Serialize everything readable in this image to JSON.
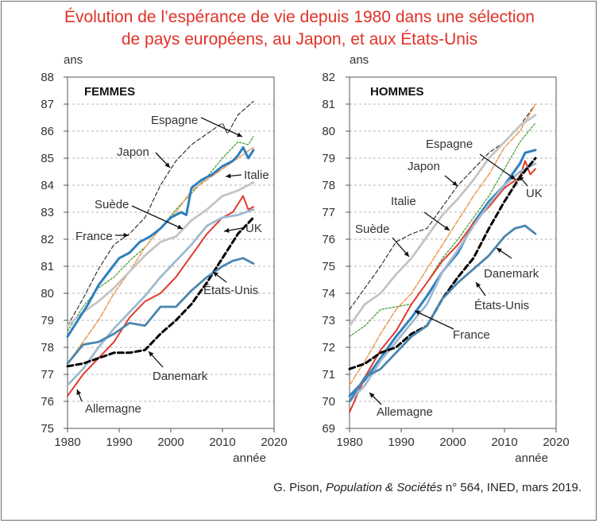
{
  "title_line1": "Évolution de l’espérance de vie depuis 1980 dans une sélection",
  "title_line2": "de pays européens, au Japon, et aux États-Unis",
  "source": {
    "author": "G. Pison, ",
    "journal": "Population & Sociétés",
    "rest": " n° 564, INED, mars 2019."
  },
  "colors": {
    "Japon": "#222222",
    "Espagne": "#3a9a2a",
    "Italie": "#e8954a",
    "Suède": "#c4c4c4",
    "France": "#2e7fbf",
    "UK": "#e23a2e",
    "Allemagne": "#9fbad0",
    "Danemark": "#000000",
    "États-Unis": "#4a86ae"
  },
  "chart_data": [
    {
      "type": "line",
      "panel_title": "FEMMES",
      "ylabel": "ans",
      "xlabel": "année",
      "xlim": [
        1980,
        2020
      ],
      "ylim": [
        75,
        88
      ],
      "xticks": [
        1980,
        1990,
        2000,
        2010,
        2020
      ],
      "yticks": [
        75,
        76,
        77,
        78,
        79,
        80,
        81,
        82,
        83,
        84,
        85,
        86,
        87,
        88
      ],
      "grid": "horizontal dashed",
      "series": [
        {
          "name": "Japon",
          "style": "dashed-thin",
          "x": [
            1980,
            1983,
            1986,
            1989,
            1992,
            1995,
            1998,
            2001,
            2004,
            2007,
            2010,
            2011,
            2013,
            2016
          ],
          "y": [
            78.8,
            79.8,
            80.9,
            81.8,
            82.2,
            82.8,
            84.0,
            84.9,
            85.5,
            85.9,
            86.3,
            85.9,
            86.6,
            87.1
          ]
        },
        {
          "name": "Espagne",
          "style": "dashed-dot",
          "x": [
            1980,
            1983,
            1986,
            1989,
            1992,
            1995,
            1998,
            2001,
            2004,
            2007,
            2010,
            2013,
            2015,
            2016
          ],
          "y": [
            78.6,
            79.5,
            80.2,
            80.6,
            81.2,
            81.7,
            82.4,
            83.1,
            83.7,
            84.3,
            85.0,
            85.6,
            85.5,
            85.8
          ]
        },
        {
          "name": "Italie",
          "style": "dash-long",
          "x": [
            1980,
            1983,
            1986,
            1989,
            1992,
            1995,
            1998,
            2001,
            2004,
            2007,
            2010,
            2013,
            2016
          ],
          "y": [
            77.4,
            78.2,
            79.0,
            80.0,
            80.8,
            81.7,
            82.4,
            83.0,
            83.8,
            84.2,
            84.6,
            85.0,
            85.4
          ]
        },
        {
          "name": "Suède",
          "style": "solid-gray",
          "x": [
            1980,
            1983,
            1986,
            1989,
            1992,
            1995,
            1998,
            2001,
            2004,
            2007,
            2010,
            2013,
            2016
          ],
          "y": [
            78.8,
            79.3,
            79.7,
            80.2,
            80.8,
            81.4,
            81.9,
            82.1,
            82.7,
            83.1,
            83.6,
            83.8,
            84.1
          ]
        },
        {
          "name": "France",
          "style": "solid-thick",
          "x": [
            1980,
            1982,
            1984,
            1986,
            1988,
            1990,
            1992,
            1994,
            1996,
            1998,
            2000,
            2002,
            2003,
            2004,
            2006,
            2008,
            2010,
            2012,
            2013,
            2014,
            2015,
            2016
          ],
          "y": [
            78.4,
            79.0,
            79.6,
            80.3,
            80.8,
            81.3,
            81.5,
            81.9,
            82.1,
            82.4,
            82.8,
            83.0,
            82.9,
            83.9,
            84.2,
            84.4,
            84.7,
            84.9,
            85.1,
            85.4,
            85.0,
            85.3
          ]
        },
        {
          "name": "UK",
          "style": "solid-red",
          "x": [
            1980,
            1983,
            1986,
            1989,
            1992,
            1995,
            1998,
            2001,
            2004,
            2007,
            2010,
            2012,
            2014,
            2015,
            2016
          ],
          "y": [
            76.2,
            77.0,
            77.6,
            78.2,
            79.1,
            79.7,
            80.0,
            80.6,
            81.4,
            82.2,
            82.8,
            83.0,
            83.6,
            83.1,
            83.2
          ]
        },
        {
          "name": "Allemagne",
          "style": "solid-lightblue",
          "x": [
            1980,
            1983,
            1986,
            1989,
            1992,
            1995,
            1998,
            2001,
            2004,
            2007,
            2010,
            2013,
            2016
          ],
          "y": [
            76.6,
            77.2,
            78.0,
            78.7,
            79.3,
            79.9,
            80.6,
            81.2,
            81.8,
            82.5,
            82.8,
            82.9,
            83.1
          ]
        },
        {
          "name": "Danemark",
          "style": "dashed-thick",
          "x": [
            1980,
            1983,
            1986,
            1989,
            1992,
            1995,
            1998,
            2001,
            2004,
            2007,
            2010,
            2013,
            2016
          ],
          "y": [
            77.3,
            77.4,
            77.6,
            77.8,
            77.8,
            77.9,
            78.5,
            79.0,
            79.6,
            80.4,
            81.3,
            82.2,
            82.8
          ]
        },
        {
          "name": "États-Unis",
          "style": "solid-black",
          "x": [
            1980,
            1983,
            1986,
            1989,
            1992,
            1995,
            1998,
            2001,
            2004,
            2007,
            2010,
            2012,
            2014,
            2016
          ],
          "y": [
            77.4,
            78.1,
            78.2,
            78.5,
            78.9,
            78.8,
            79.5,
            79.5,
            80.1,
            80.6,
            81.0,
            81.2,
            81.3,
            81.1
          ]
        }
      ],
      "annotations": [
        "Espagne",
        "Japon",
        "Italie",
        "Suède",
        "France",
        "UK",
        "États-Unis",
        "Danemark",
        "Allemagne"
      ]
    },
    {
      "type": "line",
      "panel_title": "HOMMES",
      "ylabel": "ans",
      "xlabel": "année",
      "xlim": [
        1980,
        2020
      ],
      "ylim": [
        69,
        82
      ],
      "xticks": [
        1980,
        1990,
        2000,
        2010,
        2020
      ],
      "yticks": [
        69,
        70,
        71,
        72,
        73,
        74,
        75,
        76,
        77,
        78,
        79,
        80,
        81,
        82
      ],
      "grid": "horizontal dashed",
      "series": [
        {
          "name": "Japon",
          "style": "dashed-thin",
          "x": [
            1980,
            1983,
            1986,
            1989,
            1992,
            1995,
            1998,
            2001,
            2004,
            2007,
            2010,
            2013,
            2016
          ],
          "y": [
            73.4,
            74.2,
            75.0,
            75.9,
            76.2,
            76.4,
            77.2,
            78.0,
            78.6,
            79.2,
            79.6,
            80.2,
            81.0
          ]
        },
        {
          "name": "Espagne",
          "style": "dashed-dot",
          "x": [
            1980,
            1983,
            1986,
            1989,
            1992,
            1995,
            1998,
            2001,
            2004,
            2007,
            2010,
            2013,
            2016
          ],
          "y": [
            72.4,
            72.8,
            73.4,
            73.5,
            73.6,
            74.4,
            75.3,
            76.0,
            76.8,
            77.6,
            78.6,
            79.6,
            80.3
          ]
        },
        {
          "name": "Italie",
          "style": "dash-long",
          "x": [
            1980,
            1983,
            1986,
            1989,
            1992,
            1995,
            1998,
            2001,
            2004,
            2007,
            2010,
            2013,
            2016
          ],
          "y": [
            70.6,
            71.5,
            72.5,
            73.4,
            74.0,
            74.9,
            75.8,
            76.7,
            77.6,
            78.4,
            79.4,
            80.0,
            81.0
          ]
        },
        {
          "name": "Suède",
          "style": "solid-gray",
          "x": [
            1980,
            1983,
            1986,
            1989,
            1992,
            1995,
            1998,
            2001,
            2004,
            2007,
            2010,
            2013,
            2016
          ],
          "y": [
            72.8,
            73.6,
            74.0,
            74.7,
            75.3,
            76.1,
            76.9,
            77.5,
            78.2,
            79.0,
            79.6,
            80.2,
            80.6
          ]
        },
        {
          "name": "France",
          "style": "solid-thick",
          "x": [
            1980,
            1983,
            1986,
            1989,
            1992,
            1995,
            1998,
            2001,
            2004,
            2007,
            2010,
            2013,
            2014,
            2016
          ],
          "y": [
            70.2,
            70.8,
            71.6,
            72.4,
            73.1,
            73.9,
            74.8,
            75.5,
            76.6,
            77.4,
            78.0,
            78.8,
            79.2,
            79.3
          ]
        },
        {
          "name": "UK",
          "style": "solid-red",
          "x": [
            1980,
            1983,
            1986,
            1989,
            1992,
            1995,
            1998,
            2001,
            2004,
            2007,
            2010,
            2013,
            2014,
            2015,
            2016
          ],
          "y": [
            69.6,
            70.9,
            71.9,
            72.6,
            73.6,
            74.4,
            75.2,
            75.8,
            76.6,
            77.2,
            77.9,
            78.3,
            78.9,
            78.4,
            78.6
          ]
        },
        {
          "name": "Allemagne",
          "style": "solid-lightblue",
          "x": [
            1980,
            1983,
            1986,
            1989,
            1992,
            1995,
            1998,
            2001,
            2004,
            2007,
            2010,
            2013,
            2016
          ],
          "y": [
            70.0,
            70.6,
            71.5,
            72.2,
            72.9,
            73.6,
            74.8,
            75.6,
            76.5,
            77.3,
            78.0,
            78.5,
            78.8
          ]
        },
        {
          "name": "Danemark",
          "style": "dashed-thick",
          "x": [
            1980,
            1983,
            1986,
            1989,
            1992,
            1995,
            1998,
            2001,
            2004,
            2007,
            2010,
            2013,
            2016
          ],
          "y": [
            71.2,
            71.4,
            71.8,
            72.0,
            72.5,
            72.8,
            73.8,
            74.6,
            75.3,
            76.4,
            77.4,
            78.3,
            79.0
          ]
        },
        {
          "name": "États-Unis",
          "style": "solid-black",
          "x": [
            1980,
            1983,
            1986,
            1989,
            1992,
            1995,
            1998,
            2001,
            2004,
            2007,
            2010,
            2012,
            2014,
            2016
          ],
          "y": [
            70.0,
            70.9,
            71.2,
            71.8,
            72.4,
            72.8,
            73.8,
            74.4,
            74.9,
            75.4,
            76.1,
            76.4,
            76.5,
            76.2
          ]
        }
      ],
      "annotations": [
        "Espagne",
        "Japon",
        "UK",
        "Italie",
        "Suède",
        "Danemark",
        "États-Unis",
        "France",
        "Allemagne"
      ]
    }
  ]
}
